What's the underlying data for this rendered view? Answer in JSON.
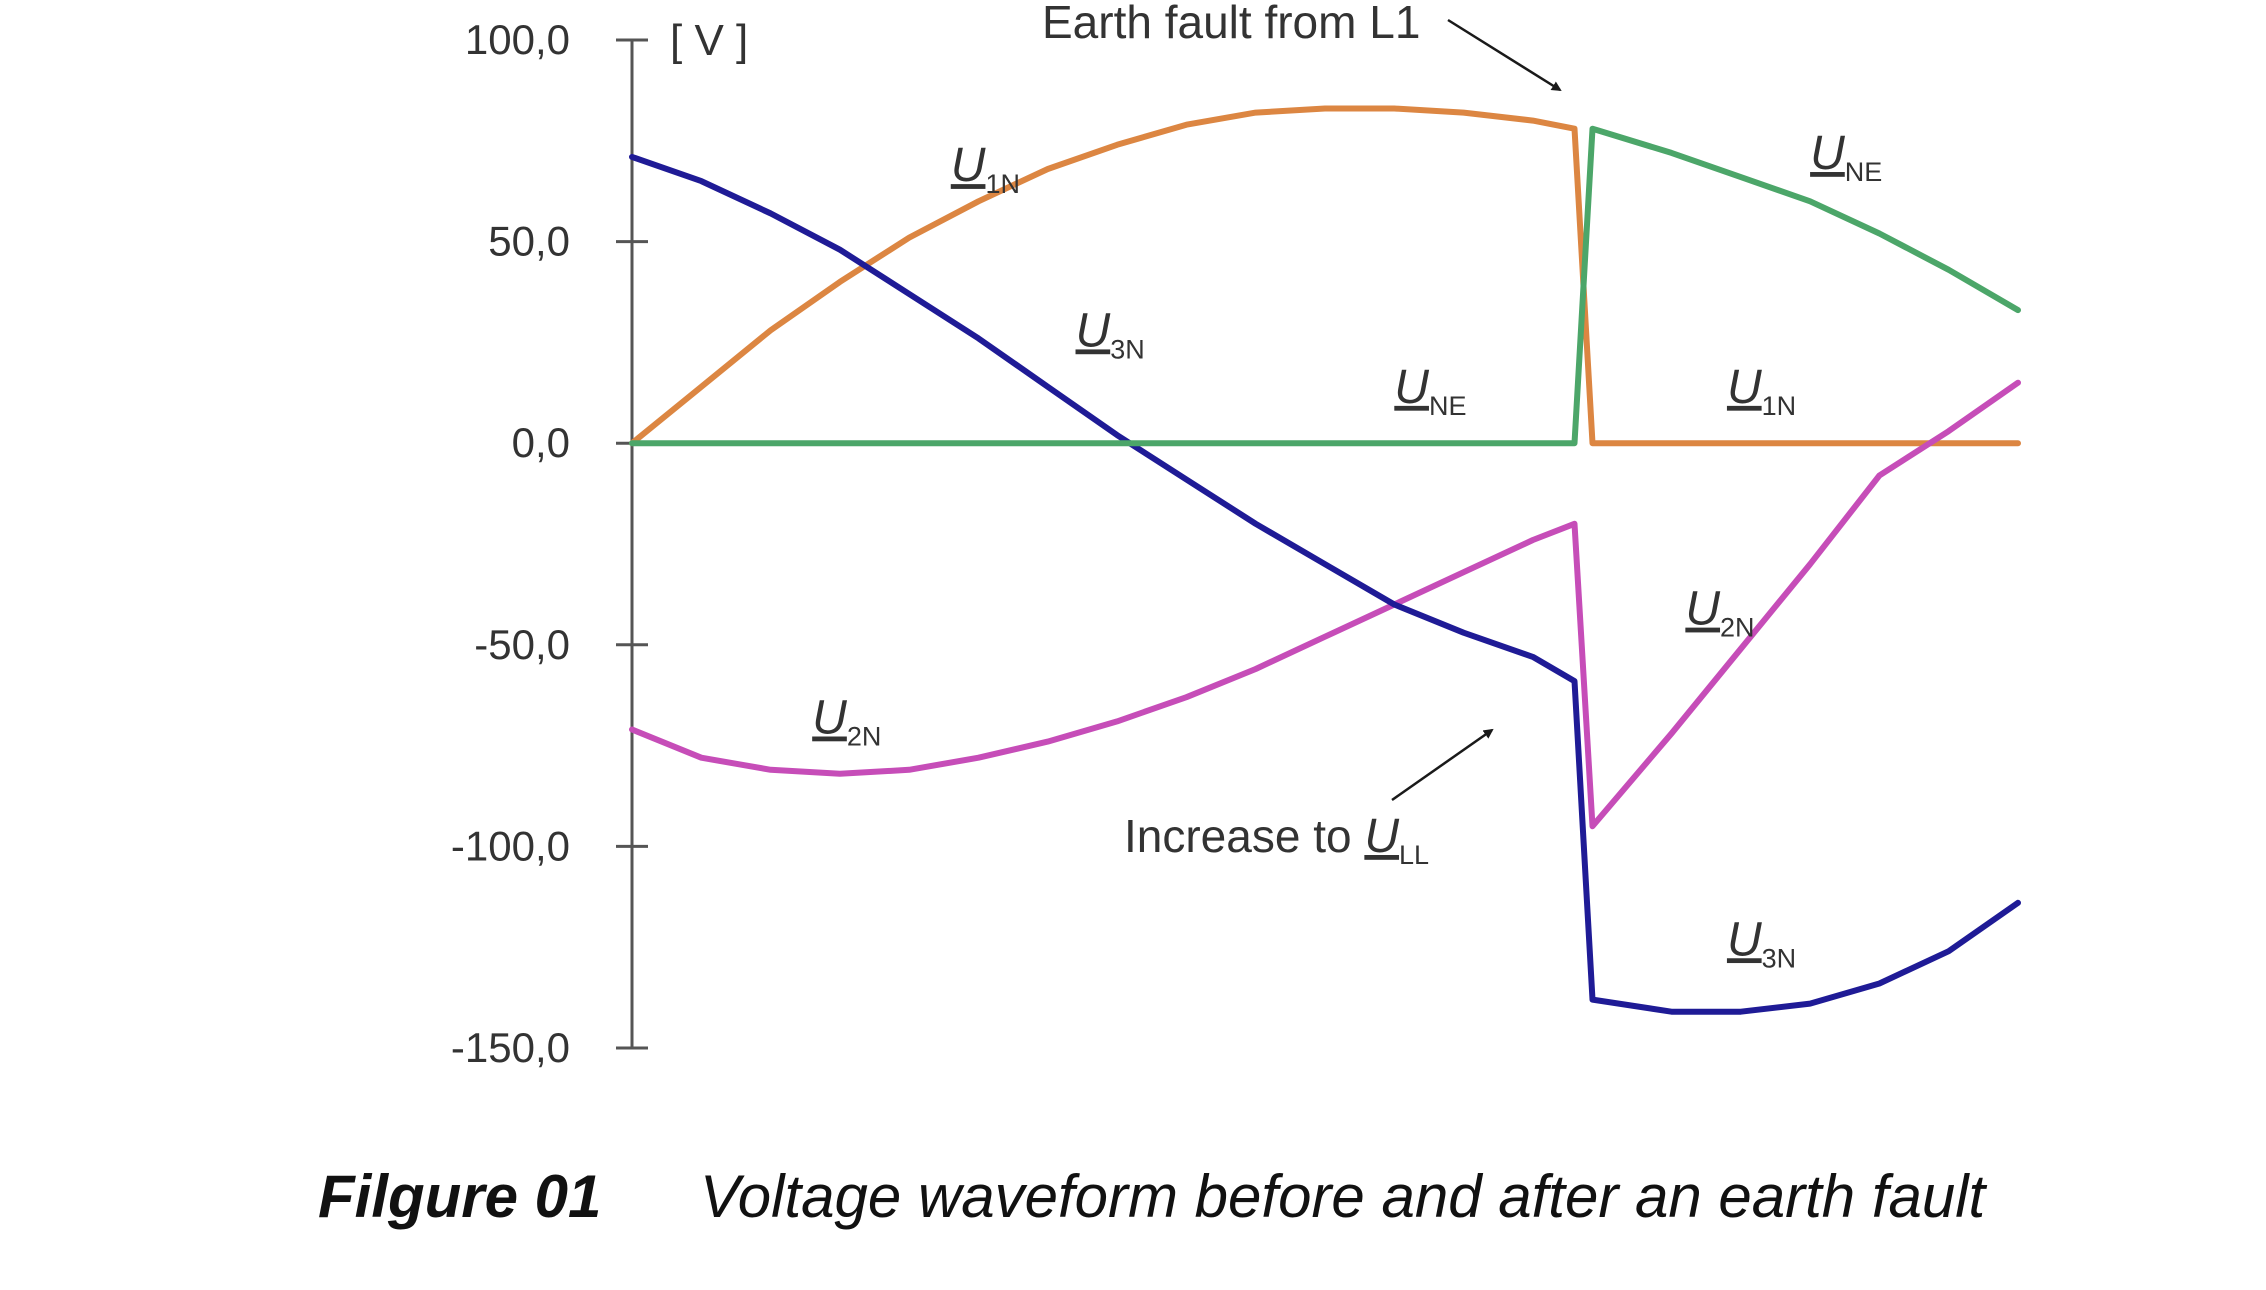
{
  "chart_data": {
    "type": "line",
    "y_unit_label": "[ V ]",
    "x_range": [
      0,
      100
    ],
    "ylim": [
      -150,
      100
    ],
    "y_ticks": [
      {
        "value": 100,
        "label": "100,0"
      },
      {
        "value": 50,
        "label": "50,0"
      },
      {
        "value": 0,
        "label": "0,0"
      },
      {
        "value": -50,
        "label": "-50,0"
      },
      {
        "value": -100,
        "label": "-100,0"
      },
      {
        "value": -150,
        "label": "-150,0"
      }
    ],
    "grid": false,
    "series": [
      {
        "key": "U1N",
        "color": "#dc8642",
        "points": [
          [
            0,
            0
          ],
          [
            5,
            14
          ],
          [
            10,
            28
          ],
          [
            15,
            40
          ],
          [
            20,
            51
          ],
          [
            25,
            60
          ],
          [
            30,
            68
          ],
          [
            35,
            74
          ],
          [
            40,
            79
          ],
          [
            45,
            82
          ],
          [
            50,
            83
          ],
          [
            55,
            83
          ],
          [
            60,
            82
          ],
          [
            65,
            80
          ],
          [
            68,
            78
          ],
          [
            69.3,
            0
          ],
          [
            75,
            0
          ],
          [
            80,
            0
          ],
          [
            85,
            0
          ],
          [
            90,
            0
          ],
          [
            95,
            0
          ],
          [
            100,
            0
          ]
        ]
      },
      {
        "key": "U2N",
        "color": "#c64db8",
        "points": [
          [
            0,
            -71
          ],
          [
            5,
            -78
          ],
          [
            10,
            -81
          ],
          [
            15,
            -82
          ],
          [
            20,
            -81
          ],
          [
            25,
            -78
          ],
          [
            30,
            -74
          ],
          [
            35,
            -69
          ],
          [
            40,
            -63
          ],
          [
            45,
            -56
          ],
          [
            50,
            -48
          ],
          [
            55,
            -40
          ],
          [
            60,
            -32
          ],
          [
            65,
            -24
          ],
          [
            68,
            -20
          ],
          [
            69.3,
            -95
          ],
          [
            75,
            -72
          ],
          [
            80,
            -51
          ],
          [
            85,
            -30
          ],
          [
            90,
            -8
          ],
          [
            95,
            3
          ],
          [
            100,
            15
          ]
        ]
      },
      {
        "key": "U3N",
        "color": "#1f1b96",
        "points": [
          [
            0,
            71
          ],
          [
            5,
            65
          ],
          [
            10,
            57
          ],
          [
            15,
            48
          ],
          [
            20,
            37
          ],
          [
            25,
            26
          ],
          [
            30,
            14
          ],
          [
            35,
            2
          ],
          [
            40,
            -9
          ],
          [
            45,
            -20
          ],
          [
            50,
            -30
          ],
          [
            55,
            -40
          ],
          [
            60,
            -47
          ],
          [
            65,
            -53
          ],
          [
            68,
            -59
          ],
          [
            69.3,
            -138
          ],
          [
            75,
            -141
          ],
          [
            80,
            -141
          ],
          [
            85,
            -139
          ],
          [
            90,
            -134
          ],
          [
            95,
            -126
          ],
          [
            100,
            -114
          ]
        ]
      },
      {
        "key": "UNE",
        "color": "#4ca669",
        "points": [
          [
            0,
            0
          ],
          [
            20,
            0
          ],
          [
            40,
            0
          ],
          [
            60,
            0
          ],
          [
            68,
            0
          ],
          [
            69.3,
            78
          ],
          [
            75,
            72
          ],
          [
            80,
            66
          ],
          [
            85,
            60
          ],
          [
            90,
            52
          ],
          [
            95,
            43
          ],
          [
            100,
            33
          ]
        ]
      }
    ],
    "series_labels": [
      {
        "series": "U1N",
        "main": "U",
        "sub": "1N",
        "x": 23,
        "y": 65
      },
      {
        "series": "U3N",
        "main": "U",
        "sub": "3N",
        "x": 32,
        "y": 24
      },
      {
        "series": "UNE",
        "main": "U",
        "sub": "NE",
        "x": 55,
        "y": 10
      },
      {
        "series": "U2N",
        "main": "U",
        "sub": "2N",
        "x": 13,
        "y": -72
      },
      {
        "series": "UNE",
        "main": "U",
        "sub": "NE",
        "x": 85,
        "y": 68
      },
      {
        "series": "U1N",
        "main": "U",
        "sub": "1N",
        "x": 79,
        "y": 10
      },
      {
        "series": "U2N",
        "main": "U",
        "sub": "2N",
        "x": 76,
        "y": -45
      },
      {
        "series": "U3N",
        "main": "U",
        "sub": "3N",
        "x": 79,
        "y": -127
      }
    ],
    "annotations": {
      "fault_text": "Earth fault from L1",
      "increase_text": "Increase to ",
      "increase_main": "U",
      "increase_sub": "LL"
    }
  },
  "caption": {
    "figure_number": "Filgure 01",
    "text": "Voltage waveform before and after an earth fault"
  }
}
